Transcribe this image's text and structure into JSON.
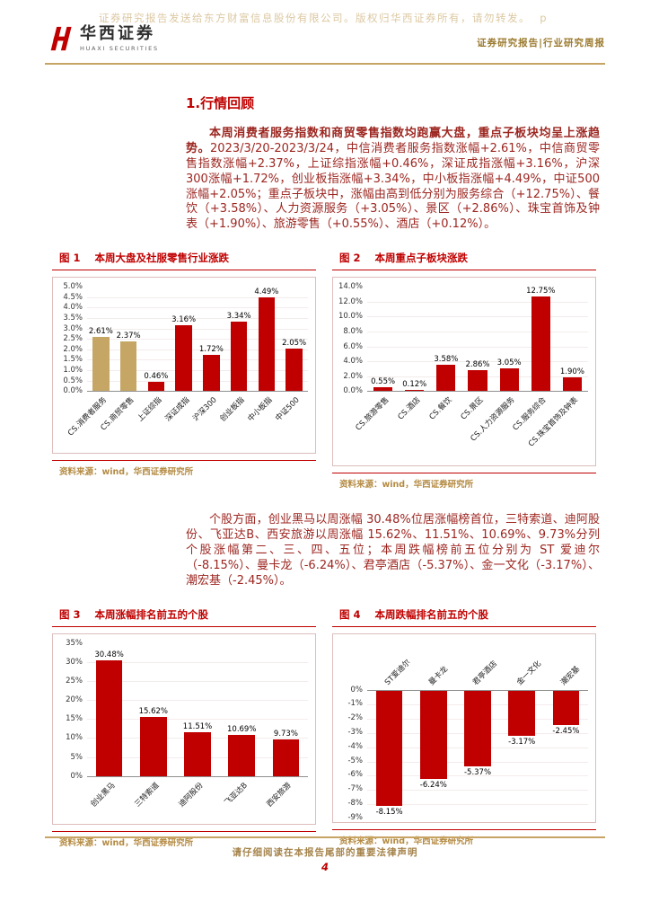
{
  "watermark": "证券研究报告发送给东方财富信息股份有限公司。版权归华西证券所有，请勿转发。  p",
  "header": {
    "logo_text": "华西证券",
    "logo_subtext": "HUAXI SECURITIES",
    "right_label": "证券研究报告|行业研究周报"
  },
  "section": {
    "title": "1.行情回顾",
    "paragraph1_bold": "本周消费者服务指数和商贸零售指数均跑赢大盘，重点子板块均呈上涨趋势。",
    "paragraph1_rest": "2023/3/20-2023/3/24，中信消费者服务指数涨幅+2.61%，中信商贸零售指数涨幅+2.37%，上证综指涨幅+0.46%，深证成指涨幅+3.16%，沪深300涨幅+1.72%，创业板指涨幅+3.34%，中小板指涨幅+4.49%，中证500涨幅+2.05%；重点子板块中，涨幅由高到低分别为服务综合（+12.75%）、餐饮（+3.58%）、人力资源服务（+3.05%）、景区（+2.86%）、珠宝首饰及钟表（+1.90%）、旅游零售（+0.55%）、酒店（+0.12%）。",
    "paragraph2": "个股方面，创业黑马以周涨幅 30.48%位居涨幅榜首位，三特索道、迪阿股份、飞亚达B、西安旅游以周涨幅 15.62%、11.51%、10.69%、9.73%分列个股涨幅第二、三、四、五位；本周跌幅榜前五位分别为 ST 爱迪尔（-8.15%）、曼卡龙（-6.24%）、君亭酒店（-5.37%）、金一文化（-3.17%）、潮宏基（-2.45%）。"
  },
  "colors": {
    "accent_red": "#c00000",
    "gold_rule": "#c8a464",
    "bar_red": "#c00000",
    "bar_tan": "#c6a665",
    "source_text": "#b48a42"
  },
  "chart_data": [
    {
      "type": "bar",
      "fig_label": "图 1",
      "title": "本周大盘及社服零售行业涨跌",
      "categories": [
        "CS.消费者服务",
        "CS.商贸零售",
        "上证综指",
        "深证成指",
        "沪深300",
        "创业板指",
        "中小板指",
        "中证500"
      ],
      "values": [
        2.61,
        2.37,
        0.46,
        3.16,
        1.72,
        3.34,
        4.49,
        2.05
      ],
      "value_labels": [
        "2.61%",
        "2.37%",
        "0.46%",
        "3.16%",
        "1.72%",
        "3.34%",
        "4.49%",
        "2.05%"
      ],
      "bar_colors": [
        "#c6a665",
        "#c6a665",
        "#c00000",
        "#c00000",
        "#c00000",
        "#c00000",
        "#c00000",
        "#c00000"
      ],
      "ylim": [
        0,
        5
      ],
      "ytick_values": [
        0,
        0.5,
        1,
        1.5,
        2,
        2.5,
        3,
        3.5,
        4,
        4.5,
        5
      ],
      "ytick_labels": [
        "0.0%",
        "0.5%",
        "1.0%",
        "1.5%",
        "2.0%",
        "2.5%",
        "3.0%",
        "3.5%",
        "4.0%",
        "4.5%",
        "5.0%"
      ],
      "direction": "up",
      "grid": "faint",
      "legend": "none",
      "source": "资料来源：wind，华西证券研究所"
    },
    {
      "type": "bar",
      "fig_label": "图 2",
      "title": "本周重点子板块涨跌",
      "categories": [
        "CS.旅游零售",
        "CS.酒店",
        "CS.餐饮",
        "CS.景区",
        "CS.人力资源服务",
        "CS.服务综合",
        "CS.珠宝首饰及钟表"
      ],
      "values": [
        0.55,
        0.12,
        3.58,
        2.86,
        3.05,
        12.75,
        1.9
      ],
      "value_labels": [
        "0.55%",
        "0.12%",
        "3.58%",
        "2.86%",
        "3.05%",
        "12.75%",
        "1.90%"
      ],
      "bar_colors": "#c00000",
      "ylim": [
        0,
        14
      ],
      "ytick_values": [
        0,
        2,
        4,
        6,
        8,
        10,
        12,
        14
      ],
      "ytick_labels": [
        "0.0%",
        "2.0%",
        "4.0%",
        "6.0%",
        "8.0%",
        "10.0%",
        "12.0%",
        "14.0%"
      ],
      "direction": "up",
      "grid": "faint",
      "legend": "none",
      "source": "资料来源：wind，华西证券研究所"
    },
    {
      "type": "bar",
      "fig_label": "图 3",
      "title": "本周涨幅排名前五的个股",
      "categories": [
        "创业黑马",
        "三特索道",
        "迪阿股份",
        "飞亚达B",
        "西安旅游"
      ],
      "values": [
        30.48,
        15.62,
        11.51,
        10.69,
        9.73
      ],
      "value_labels": [
        "30.48%",
        "15.62%",
        "11.51%",
        "10.69%",
        "9.73%"
      ],
      "bar_colors": "#c00000",
      "ylim": [
        0,
        35
      ],
      "ytick_values": [
        0,
        5,
        10,
        15,
        20,
        25,
        30,
        35
      ],
      "ytick_labels": [
        "0%",
        "5%",
        "10%",
        "15%",
        "20%",
        "25%",
        "30%",
        "35%"
      ],
      "direction": "up",
      "grid": "faint",
      "legend": "none",
      "source": "资料来源：wind，华西证券研究所"
    },
    {
      "type": "bar",
      "fig_label": "图 4",
      "title": "本周跌幅排名前五的个股",
      "categories": [
        "ST爱迪尔",
        "曼卡龙",
        "君亭酒店",
        "金一文化",
        "潮宏基"
      ],
      "values": [
        -8.15,
        -6.24,
        -5.37,
        -3.17,
        -2.45
      ],
      "value_labels": [
        "-8.15%",
        "-6.24%",
        "-5.37%",
        "-3.17%",
        "-2.45%"
      ],
      "bar_colors": "#c00000",
      "ylim": [
        -9,
        0
      ],
      "ytick_values": [
        0,
        -1,
        -2,
        -3,
        -4,
        -5,
        -6,
        -7,
        -8,
        -9
      ],
      "ytick_labels": [
        "0%",
        "-1%",
        "-2%",
        "-3%",
        "-4%",
        "-5%",
        "-6%",
        "-7%",
        "-8%",
        "-9%"
      ],
      "direction": "down",
      "grid": "faint",
      "legend": "none",
      "source": "资料来源：wind，华西证券研究所"
    }
  ],
  "footer": {
    "disclaimer": "请仔细阅读在本报告尾部的重要法律声明",
    "page_number": "4"
  }
}
